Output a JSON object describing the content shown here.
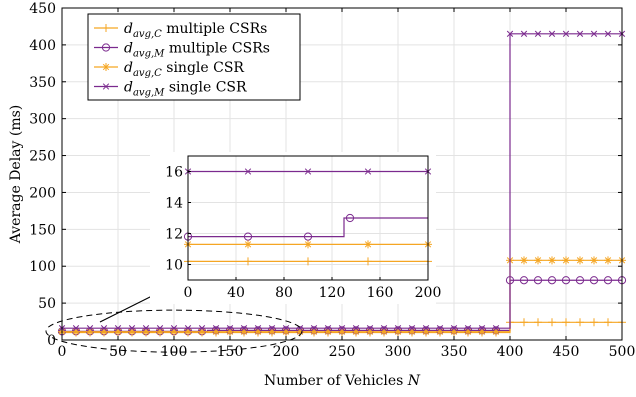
{
  "chart_data": {
    "type": "line",
    "xlabel": "Number of Vehicles",
    "xlabel_symbol": "N",
    "ylabel": "Average Delay (ms)",
    "xlim": [
      0,
      500
    ],
    "ylim": [
      0,
      450
    ],
    "xticks": [
      0,
      50,
      100,
      150,
      200,
      250,
      300,
      350,
      400,
      450,
      500
    ],
    "yticks": [
      0,
      50,
      100,
      150,
      200,
      250,
      300,
      350,
      400,
      450
    ],
    "grid": true,
    "legend_position": "top-left",
    "series": [
      {
        "name": "d_avg,C multiple CSRs",
        "legend_sub": "avg,C",
        "legend_suffix": " multiple CSRs",
        "color": "#f5a623",
        "marker": "plus",
        "points": [
          [
            0,
            10.2
          ],
          [
            400,
            10.2
          ],
          [
            400,
            24
          ],
          [
            500,
            24
          ]
        ]
      },
      {
        "name": "d_avg,M multiple CSRs",
        "legend_sub": "avg,M",
        "legend_suffix": " multiple CSRs",
        "color": "#7b2a8e",
        "marker": "circle",
        "points": [
          [
            0,
            11.8
          ],
          [
            130,
            11.8
          ],
          [
            130,
            13
          ],
          [
            400,
            13
          ],
          [
            400,
            81
          ],
          [
            500,
            81
          ]
        ]
      },
      {
        "name": "d_avg,C single CSR",
        "legend_sub": "avg,C",
        "legend_suffix": " single CSR",
        "color": "#f5a623",
        "marker": "asterisk",
        "points": [
          [
            0,
            11.3
          ],
          [
            400,
            11.3
          ],
          [
            400,
            108
          ],
          [
            500,
            108
          ]
        ]
      },
      {
        "name": "d_avg,M single CSR",
        "legend_sub": "avg,M",
        "legend_suffix": " single CSR",
        "color": "#7b2a8e",
        "marker": "x",
        "points": [
          [
            0,
            16
          ],
          [
            400,
            16
          ],
          [
            400,
            415
          ],
          [
            500,
            415
          ]
        ]
      }
    ],
    "inset": {
      "xlim": [
        0,
        200
      ],
      "ylim": [
        9,
        17
      ],
      "xticks": [
        0,
        40,
        80,
        120,
        160,
        200
      ],
      "yticks": [
        10,
        12,
        14,
        16
      ]
    }
  }
}
